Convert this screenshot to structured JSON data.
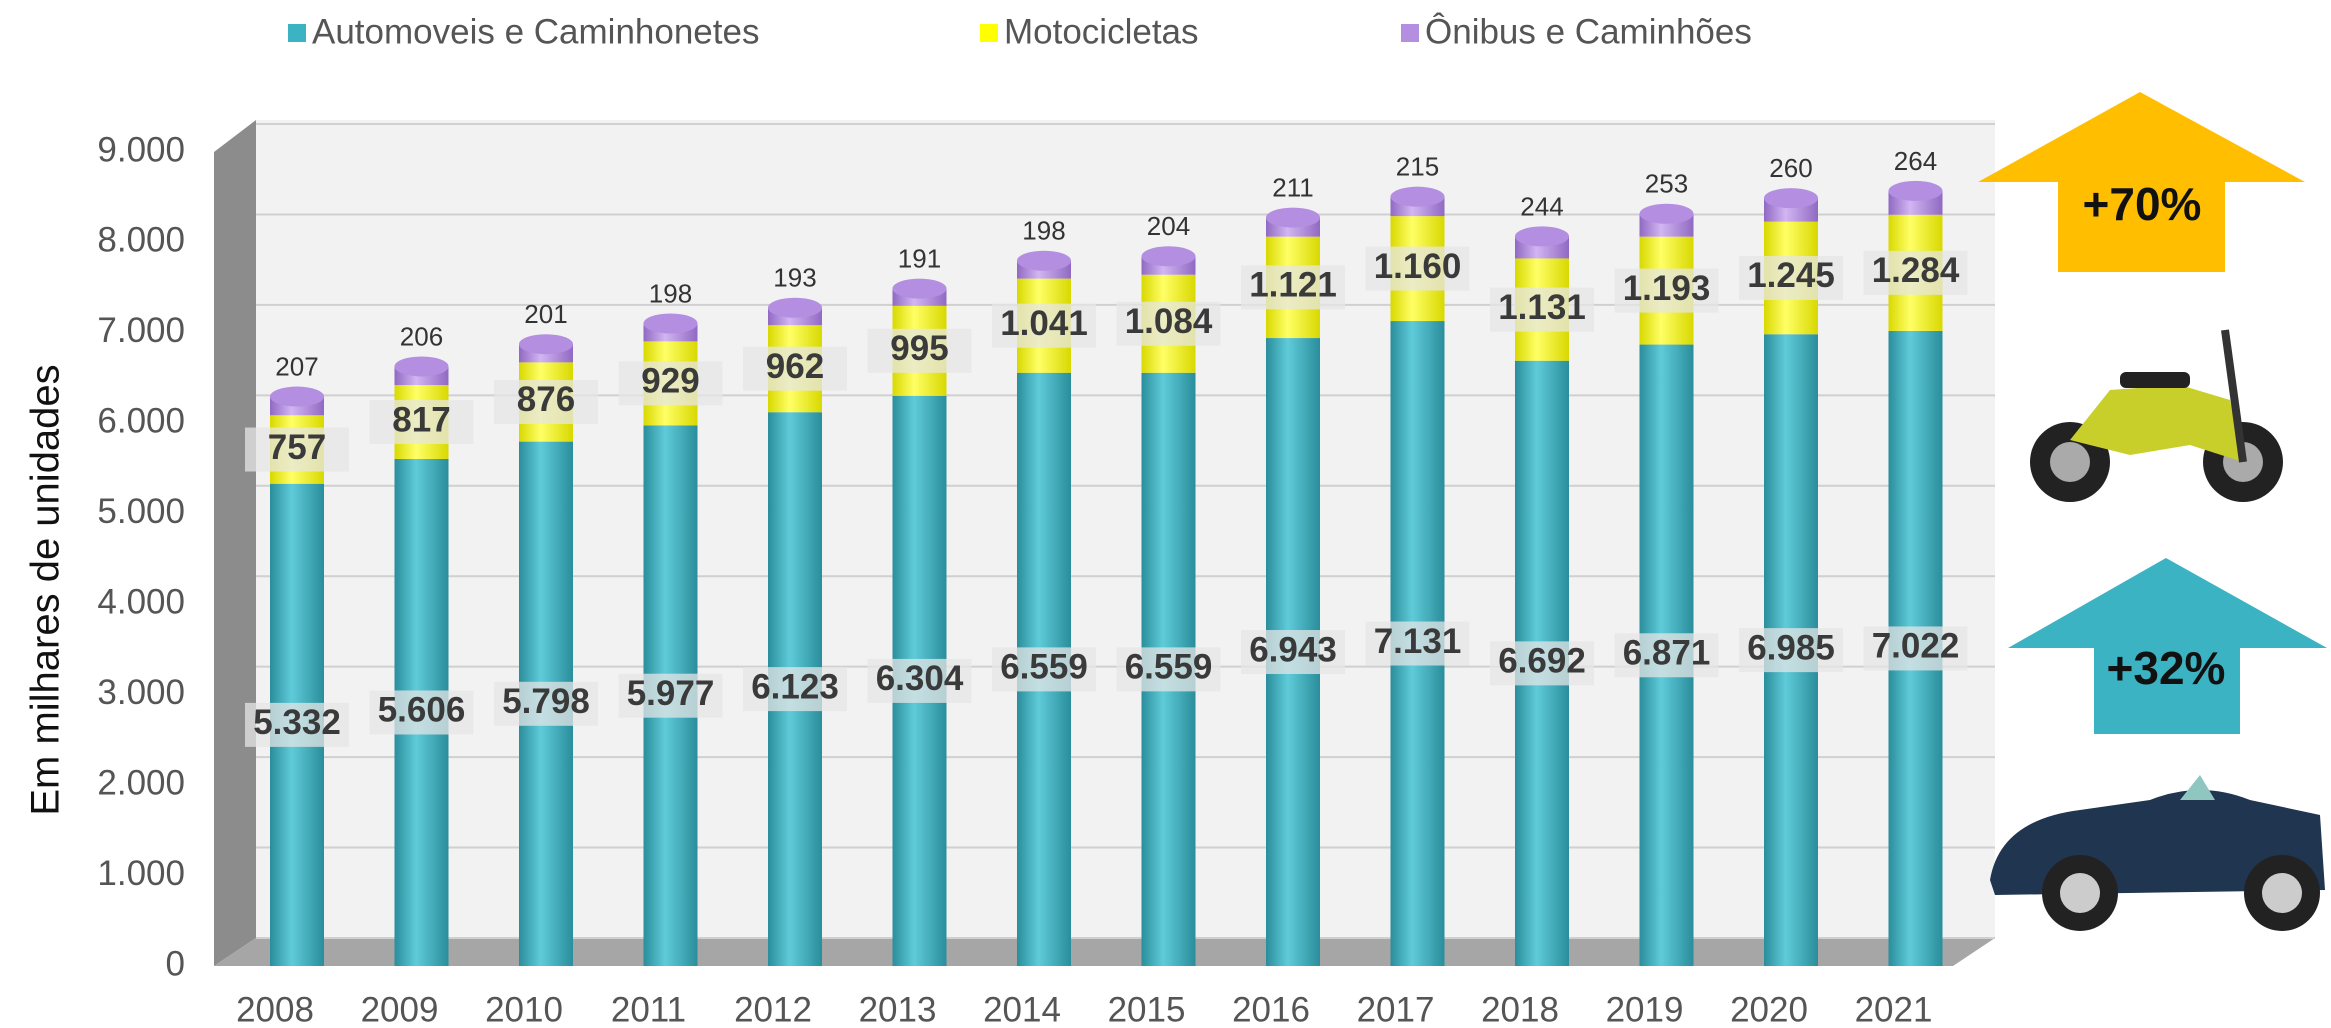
{
  "chart_data": {
    "type": "stacked_bar",
    "y_label": "Em milhares de unidades",
    "categories": [
      "2008",
      "2009",
      "2010",
      "2011",
      "2012",
      "2013",
      "2014",
      "2015",
      "2016",
      "2017",
      "2018",
      "2019",
      "2020",
      "2021"
    ],
    "series": [
      {
        "name": "Automoveis e Caminhonetes",
        "color": "#3cb3c3",
        "values": [
          5332,
          5606,
          5798,
          5977,
          6123,
          6304,
          6559,
          6559,
          6943,
          7131,
          6692,
          6871,
          6985,
          7022
        ],
        "value_labels": [
          "5.332",
          "5.606",
          "5.798",
          "5.977",
          "6.123",
          "6.304",
          "6.559",
          "6.559",
          "6.943",
          "7.131",
          "6.692",
          "6.871",
          "6.985",
          "7.022"
        ]
      },
      {
        "name": "Motocicletas",
        "color": "#ffff00",
        "values": [
          757,
          817,
          876,
          929,
          962,
          995,
          1041,
          1084,
          1121,
          1160,
          1131,
          1193,
          1245,
          1284
        ],
        "value_labels": [
          "757",
          "817",
          "876",
          "929",
          "962",
          "995",
          "1.041",
          "1.084",
          "1.121",
          "1.160",
          "1.131",
          "1.193",
          "1.245",
          "1.284"
        ]
      },
      {
        "name": "Ônibus e Caminhões",
        "color": "#b48ee0",
        "values": [
          207,
          206,
          201,
          198,
          193,
          191,
          198,
          204,
          211,
          215,
          244,
          253,
          260,
          264
        ]
      }
    ],
    "ylim": [
      0,
      9000
    ],
    "yticks": [
      0,
      {
        "value": 1000,
        "label": "1.000"
      },
      {
        "value": 2000,
        "label": "2.000"
      },
      {
        "value": 3000,
        "label": "3.000"
      },
      {
        "value": 4000,
        "label": "4.000"
      },
      {
        "value": 5000,
        "label": "5.000"
      },
      {
        "value": 6000,
        "label": "6.000"
      },
      {
        "value": 7000,
        "label": "7.000"
      },
      {
        "value": 8000,
        "label": "8.000"
      },
      {
        "value": 9000,
        "label": "9.000"
      }
    ],
    "grid": true,
    "annotations": [
      "+70%",
      "+32%"
    ]
  }
}
